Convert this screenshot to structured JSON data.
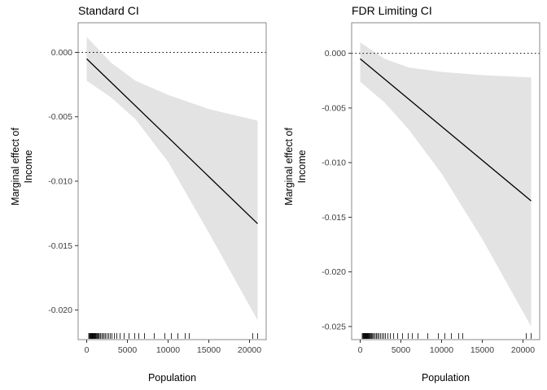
{
  "figure": {
    "background": "#ffffff",
    "panel_border_color": "#8a8a8a",
    "tick_color": "#333333",
    "tick_label_color": "#404040"
  },
  "chart_data": [
    {
      "type": "line",
      "title": "Standard CI",
      "xlabel": "Population",
      "ylabel": "Marginal effect of\nIncome",
      "xlim": [
        -1050,
        22050
      ],
      "ylim": [
        -0.0223,
        0.0023
      ],
      "xticks": [
        0,
        5000,
        10000,
        15000,
        20000
      ],
      "xtick_labels": [
        "0",
        "5000",
        "10000",
        "15000",
        "20000"
      ],
      "yticks": [
        0,
        -0.005,
        -0.01,
        -0.015,
        -0.02
      ],
      "ytick_labels": [
        "0.000",
        "-0.005",
        "-0.010",
        "-0.015",
        "-0.020"
      ],
      "reference_line_y": 0,
      "grid": false,
      "legend": "none",
      "line": {
        "x": [
          0,
          21000
        ],
        "y": [
          -0.0005,
          -0.0133
        ]
      },
      "ribbon": {
        "x": [
          0,
          3000,
          6000,
          10000,
          15000,
          21000
        ],
        "upper": [
          0.0012,
          -0.0008,
          -0.0022,
          -0.0033,
          -0.0044,
          -0.0053
        ],
        "lower": [
          -0.0022,
          -0.0035,
          -0.0052,
          -0.0085,
          -0.014,
          -0.0208
        ]
      },
      "rug_x": [
        250,
        350,
        420,
        480,
        550,
        600,
        650,
        700,
        750,
        800,
        850,
        900,
        950,
        1000,
        1080,
        1150,
        1250,
        1350,
        1450,
        1550,
        1700,
        1850,
        2000,
        2150,
        2300,
        2500,
        2700,
        2900,
        3100,
        3400,
        3700,
        4100,
        4600,
        5200,
        5900,
        6400,
        7100,
        8300,
        9600,
        10400,
        11200,
        12100,
        12600,
        20400,
        21000
      ],
      "colors": {
        "line": "#000000",
        "ribbon": "#e3e3e3"
      }
    },
    {
      "type": "line",
      "title": "FDR Limiting CI",
      "xlabel": "Population",
      "ylabel": "Marginal effect of\nIncome",
      "xlim": [
        -1050,
        22050
      ],
      "ylim": [
        -0.0262,
        0.0028
      ],
      "xticks": [
        0,
        5000,
        10000,
        15000,
        20000
      ],
      "xtick_labels": [
        "0",
        "5000",
        "10000",
        "15000",
        "20000"
      ],
      "yticks": [
        0,
        -0.005,
        -0.01,
        -0.015,
        -0.02,
        -0.025
      ],
      "ytick_labels": [
        "0.000",
        "-0.005",
        "-0.010",
        "-0.015",
        "-0.020",
        "-0.025"
      ],
      "reference_line_y": 0,
      "grid": false,
      "legend": "none",
      "line": {
        "x": [
          0,
          21000
        ],
        "y": [
          -0.0005,
          -0.0135
        ]
      },
      "ribbon": {
        "x": [
          0,
          3000,
          6000,
          10000,
          15000,
          21000
        ],
        "upper": [
          0.001,
          -0.0005,
          -0.0013,
          -0.0017,
          -0.002,
          -0.0022
        ],
        "lower": [
          -0.0026,
          -0.0045,
          -0.007,
          -0.011,
          -0.017,
          -0.025
        ]
      },
      "rug_x": [
        250,
        350,
        420,
        480,
        550,
        600,
        650,
        700,
        750,
        800,
        850,
        900,
        950,
        1000,
        1080,
        1150,
        1250,
        1350,
        1450,
        1550,
        1700,
        1850,
        2000,
        2150,
        2300,
        2500,
        2700,
        2900,
        3100,
        3400,
        3700,
        4100,
        4600,
        5200,
        5900,
        6400,
        7100,
        8300,
        9600,
        10400,
        11200,
        12100,
        12600,
        20400,
        21000
      ],
      "colors": {
        "line": "#000000",
        "ribbon": "#e3e3e3"
      }
    }
  ]
}
